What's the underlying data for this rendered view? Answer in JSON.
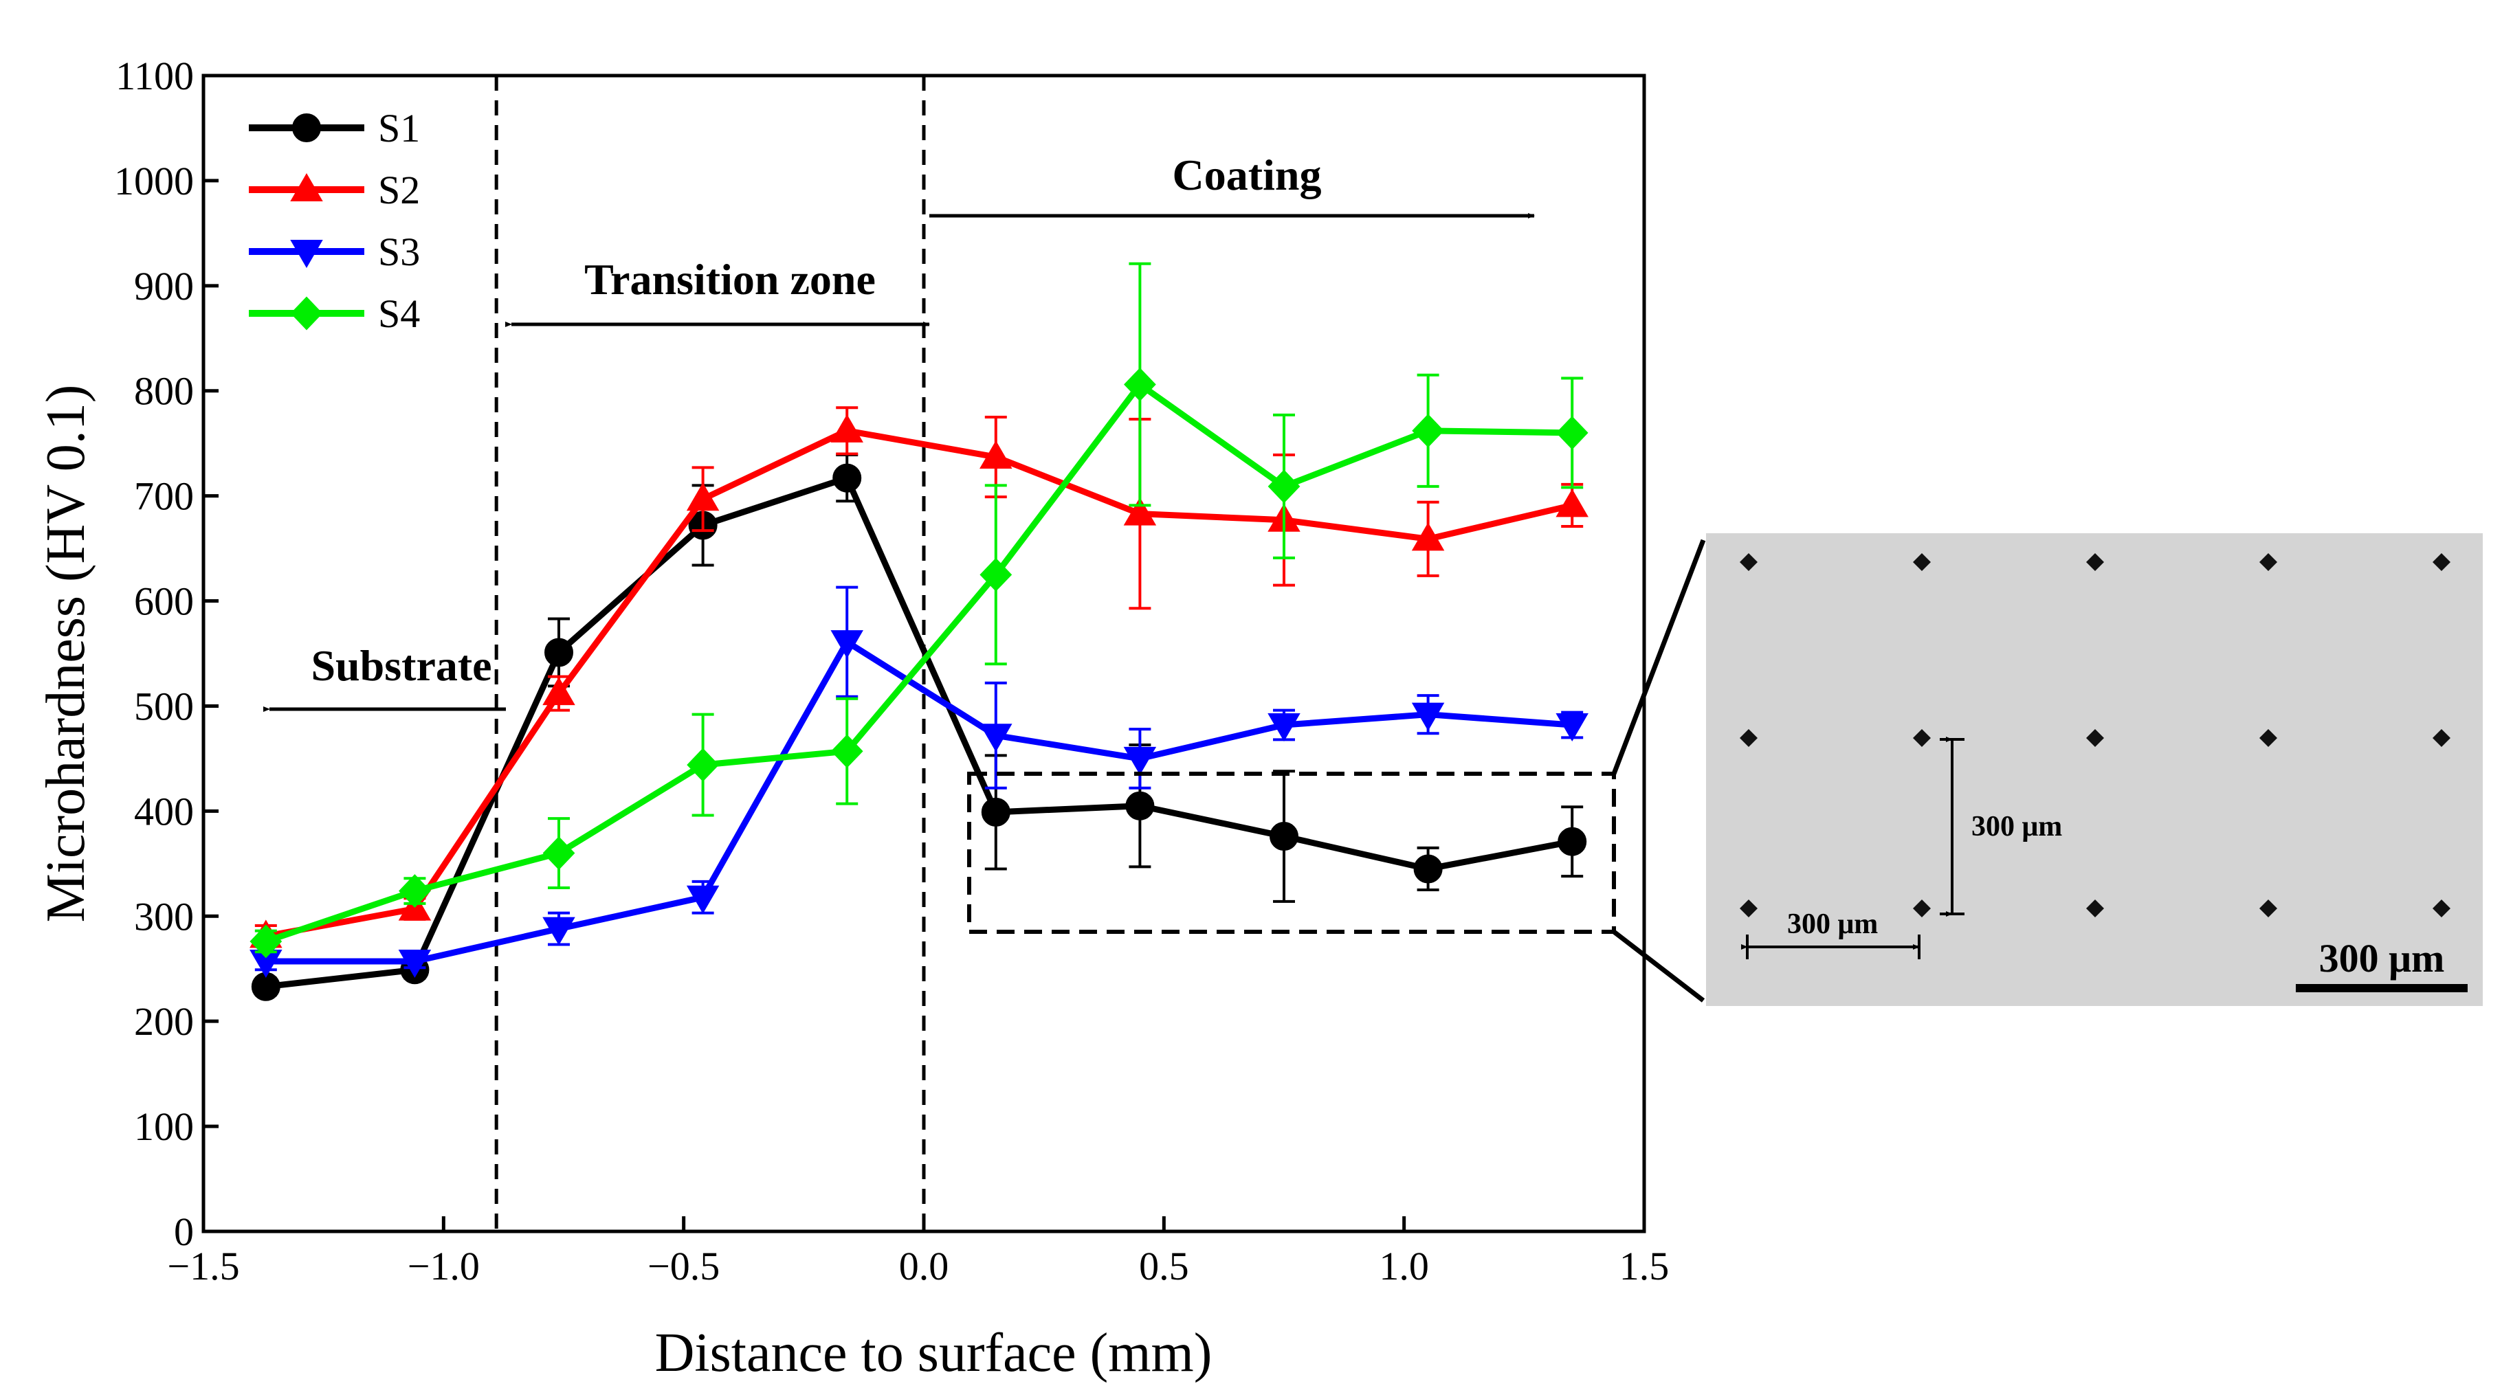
{
  "chart_data": {
    "type": "line",
    "xlabel": "Distance to surface (mm)",
    "ylabel": "Microhardness (HV 0.1)",
    "xlim": [
      -1.5,
      1.5
    ],
    "ylim": [
      0,
      1100
    ],
    "xticks": [
      -1.5,
      -1.0,
      -0.5,
      0.0,
      0.5,
      1.0,
      1.5
    ],
    "xtick_labels": [
      "−1.5",
      "−1.0",
      "−0.5",
      "0.0",
      "0.5",
      "1.0",
      "1.5"
    ],
    "yticks": [
      0,
      100,
      200,
      300,
      400,
      500,
      600,
      700,
      800,
      900,
      1000,
      1100
    ],
    "ytick_labels": [
      "0",
      "100",
      "200",
      "300",
      "400",
      "500",
      "600",
      "700",
      "800",
      "900",
      "1000",
      "1100"
    ],
    "legend_position": "top-left",
    "grid": false,
    "series": [
      {
        "name": "S1",
        "color": "#000000",
        "marker": "circle",
        "x": [
          -1.37,
          -1.06,
          -0.76,
          -0.46,
          -0.16,
          0.15,
          0.45,
          0.75,
          1.05,
          1.35
        ],
        "y": [
          233,
          249,
          551,
          672,
          717,
          399,
          405,
          376,
          345,
          371
        ],
        "yerr": [
          8,
          8,
          32,
          38,
          22,
          54,
          58,
          62,
          20,
          33
        ]
      },
      {
        "name": "S2",
        "color": "#ff0000",
        "marker": "triangle-up",
        "x": [
          -1.37,
          -1.06,
          -0.76,
          -0.46,
          -0.16,
          0.15,
          0.45,
          0.75,
          1.05,
          1.35
        ],
        "y": [
          281,
          307,
          512,
          697,
          762,
          737,
          683,
          677,
          659,
          691
        ],
        "yerr": [
          10,
          10,
          16,
          30,
          22,
          38,
          90,
          62,
          35,
          20
        ]
      },
      {
        "name": "S3",
        "color": "#0000ff",
        "marker": "triangle-down",
        "x": [
          -1.37,
          -1.06,
          -0.76,
          -0.46,
          -0.16,
          0.15,
          0.45,
          0.75,
          1.05,
          1.35
        ],
        "y": [
          257,
          257,
          288,
          318,
          561,
          472,
          450,
          482,
          492,
          482
        ],
        "yerr": [
          8,
          6,
          15,
          15,
          52,
          50,
          28,
          14,
          18,
          12
        ]
      },
      {
        "name": "S4",
        "color": "#00ee00",
        "marker": "diamond",
        "x": [
          -1.37,
          -1.06,
          -0.76,
          -0.46,
          -0.16,
          0.15,
          0.45,
          0.75,
          1.05,
          1.35
        ],
        "y": [
          276,
          324,
          360,
          444,
          457,
          625,
          806,
          709,
          762,
          760
        ],
        "yerr": [
          10,
          12,
          33,
          48,
          50,
          85,
          115,
          68,
          53,
          52
        ]
      }
    ],
    "dividers": [
      -0.89,
      0.0
    ],
    "annotations": {
      "coating": "Coating",
      "transition": "Transition zone",
      "substrate": "Substrate"
    },
    "inset": {
      "spacing_vertical_label": "300 μm",
      "spacing_horizontal_label": "300 μm",
      "scale_bar_label": "300 μm"
    }
  }
}
